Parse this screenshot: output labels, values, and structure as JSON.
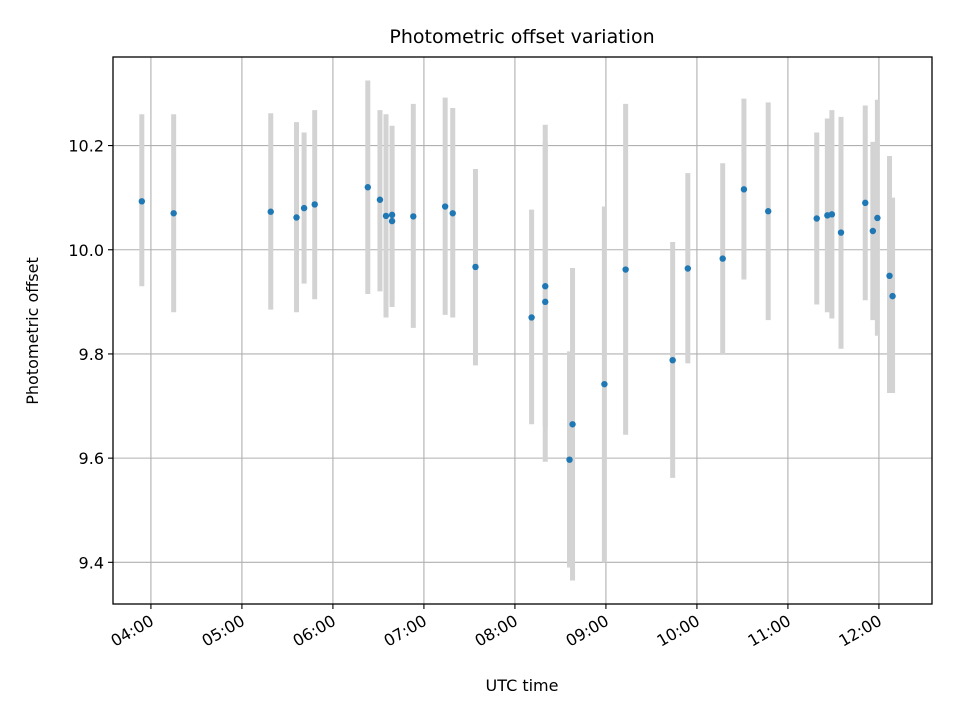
{
  "chart_data": {
    "type": "scatter",
    "title": "Photometric offset variation",
    "xlabel": "UTC time",
    "ylabel": "Photometric offset",
    "grid": true,
    "xlim": [
      "03:35",
      "12:35"
    ],
    "ylim": [
      9.32,
      10.37
    ],
    "xticks": [
      "04:00",
      "05:00",
      "06:00",
      "07:00",
      "08:00",
      "09:00",
      "10:00",
      "11:00",
      "12:00"
    ],
    "yticks": [
      9.4,
      9.6,
      9.8,
      10.0,
      10.2
    ],
    "ytick_labels": [
      "9.4",
      "9.6",
      "9.8",
      "10.0",
      "10.2"
    ],
    "colors": {
      "points": "#1f77b4",
      "errorbars": "#d3d3d3",
      "grid": "#b0b0b0"
    },
    "series": [
      {
        "points": [
          {
            "x": "03:54",
            "y": 10.093,
            "ylow": 9.93,
            "yhigh": 10.26
          },
          {
            "x": "04:15",
            "y": 10.07,
            "ylow": 9.88,
            "yhigh": 10.26
          },
          {
            "x": "05:19",
            "y": 10.073,
            "ylow": 9.885,
            "yhigh": 10.262
          },
          {
            "x": "05:36",
            "y": 10.062,
            "ylow": 9.88,
            "yhigh": 10.245
          },
          {
            "x": "05:41",
            "y": 10.08,
            "ylow": 9.935,
            "yhigh": 10.225
          },
          {
            "x": "05:48",
            "y": 10.087,
            "ylow": 9.905,
            "yhigh": 10.268
          },
          {
            "x": "06:23",
            "y": 10.12,
            "ylow": 9.915,
            "yhigh": 10.325
          },
          {
            "x": "06:31",
            "y": 10.096,
            "ylow": 9.92,
            "yhigh": 10.268
          },
          {
            "x": "06:35",
            "y": 10.065,
            "ylow": 9.87,
            "yhigh": 10.26
          },
          {
            "x": "06:39",
            "y": 10.067,
            "ylow": 9.89,
            "yhigh": 10.238
          },
          {
            "x": "06:39",
            "y": 10.055,
            "ylow": 9.9,
            "yhigh": 10.2
          },
          {
            "x": "06:53",
            "y": 10.064,
            "ylow": 9.85,
            "yhigh": 10.28
          },
          {
            "x": "07:14",
            "y": 10.083,
            "ylow": 9.875,
            "yhigh": 10.292
          },
          {
            "x": "07:19",
            "y": 10.07,
            "ylow": 9.87,
            "yhigh": 10.272
          },
          {
            "x": "07:34",
            "y": 9.967,
            "ylow": 9.778,
            "yhigh": 10.155
          },
          {
            "x": "08:11",
            "y": 9.87,
            "ylow": 9.665,
            "yhigh": 10.077
          },
          {
            "x": "08:20",
            "y": 9.93,
            "ylow": 9.66,
            "yhigh": 10.24
          },
          {
            "x": "08:20",
            "y": 9.9,
            "ylow": 9.593,
            "yhigh": 10.207
          },
          {
            "x": "08:36",
            "y": 9.597,
            "ylow": 9.39,
            "yhigh": 9.805
          },
          {
            "x": "08:38",
            "y": 9.665,
            "ylow": 9.365,
            "yhigh": 9.965
          },
          {
            "x": "08:59",
            "y": 9.742,
            "ylow": 9.4,
            "yhigh": 10.083
          },
          {
            "x": "09:13",
            "y": 9.962,
            "ylow": 9.645,
            "yhigh": 10.28
          },
          {
            "x": "09:44",
            "y": 9.788,
            "ylow": 9.562,
            "yhigh": 10.015
          },
          {
            "x": "09:54",
            "y": 9.964,
            "ylow": 9.782,
            "yhigh": 10.147
          },
          {
            "x": "10:17",
            "y": 9.983,
            "ylow": 9.8,
            "yhigh": 10.166
          },
          {
            "x": "10:31",
            "y": 10.116,
            "ylow": 9.943,
            "yhigh": 10.29
          },
          {
            "x": "10:47",
            "y": 10.074,
            "ylow": 9.865,
            "yhigh": 10.283
          },
          {
            "x": "11:19",
            "y": 10.06,
            "ylow": 9.895,
            "yhigh": 10.225
          },
          {
            "x": "11:26",
            "y": 10.066,
            "ylow": 9.88,
            "yhigh": 10.252
          },
          {
            "x": "11:29",
            "y": 10.068,
            "ylow": 9.868,
            "yhigh": 10.268
          },
          {
            "x": "11:35",
            "y": 10.033,
            "ylow": 9.81,
            "yhigh": 10.255
          },
          {
            "x": "11:51",
            "y": 10.09,
            "ylow": 9.903,
            "yhigh": 10.277
          },
          {
            "x": "11:56",
            "y": 10.036,
            "ylow": 9.865,
            "yhigh": 10.207
          },
          {
            "x": "11:59",
            "y": 10.061,
            "ylow": 9.835,
            "yhigh": 10.288
          },
          {
            "x": "12:07",
            "y": 9.95,
            "ylow": 9.725,
            "yhigh": 10.18
          },
          {
            "x": "12:09",
            "y": 9.911,
            "ylow": 9.725,
            "yhigh": 10.1
          }
        ]
      }
    ]
  }
}
